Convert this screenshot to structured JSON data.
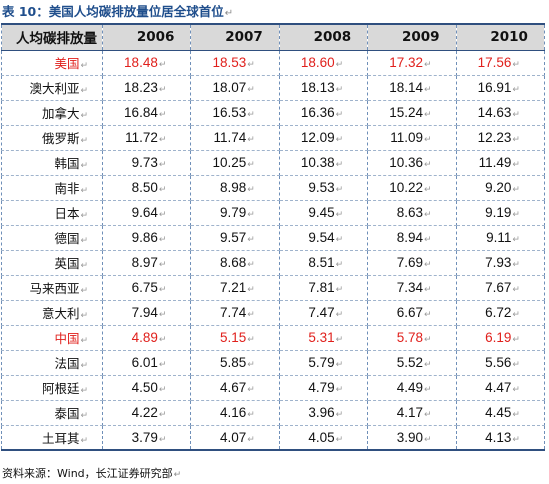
{
  "caption": "表 10：美国人均碳排放量位居全球首位",
  "para_mark": "↵",
  "table": {
    "header": [
      "人均碳排放量",
      "2006",
      "2007",
      "2008",
      "2009",
      "2010"
    ],
    "highlight_color": "#e0201c",
    "rows": [
      {
        "country": "美国",
        "highlight": true,
        "values": [
          "18.48",
          "18.53",
          "18.60",
          "17.32",
          "17.56"
        ]
      },
      {
        "country": "澳大利亚",
        "highlight": false,
        "values": [
          "18.23",
          "18.07",
          "18.13",
          "18.14",
          "16.91"
        ]
      },
      {
        "country": "加拿大",
        "highlight": false,
        "values": [
          "16.84",
          "16.53",
          "16.36",
          "15.24",
          "14.63"
        ]
      },
      {
        "country": "俄罗斯",
        "highlight": false,
        "values": [
          "11.72",
          "11.74",
          "12.09",
          "11.09",
          "12.23"
        ]
      },
      {
        "country": "韩国",
        "highlight": false,
        "values": [
          "9.73",
          "10.25",
          "10.38",
          "10.36",
          "11.49"
        ]
      },
      {
        "country": "南非",
        "highlight": false,
        "values": [
          "8.50",
          "8.98",
          "9.53",
          "10.22",
          "9.20"
        ]
      },
      {
        "country": "日本",
        "highlight": false,
        "values": [
          "9.64",
          "9.79",
          "9.45",
          "8.63",
          "9.19"
        ]
      },
      {
        "country": "德国",
        "highlight": false,
        "values": [
          "9.86",
          "9.57",
          "9.54",
          "8.94",
          "9.11"
        ]
      },
      {
        "country": "英国",
        "highlight": false,
        "values": [
          "8.97",
          "8.68",
          "8.51",
          "7.69",
          "7.93"
        ]
      },
      {
        "country": "马来西亚",
        "highlight": false,
        "values": [
          "6.75",
          "7.21",
          "7.81",
          "7.34",
          "7.67"
        ]
      },
      {
        "country": "意大利",
        "highlight": false,
        "values": [
          "7.94",
          "7.74",
          "7.47",
          "6.67",
          "6.72"
        ]
      },
      {
        "country": "中国",
        "highlight": true,
        "values": [
          "4.89",
          "5.15",
          "5.31",
          "5.78",
          "6.19"
        ]
      },
      {
        "country": "法国",
        "highlight": false,
        "values": [
          "6.01",
          "5.85",
          "5.79",
          "5.52",
          "5.56"
        ]
      },
      {
        "country": "阿根廷",
        "highlight": false,
        "values": [
          "4.50",
          "4.67",
          "4.79",
          "4.49",
          "4.47"
        ]
      },
      {
        "country": "泰国",
        "highlight": false,
        "values": [
          "4.22",
          "4.16",
          "3.96",
          "4.17",
          "4.45"
        ]
      },
      {
        "country": "土耳其",
        "highlight": false,
        "values": [
          "3.79",
          "4.07",
          "4.05",
          "3.90",
          "4.13"
        ]
      }
    ]
  },
  "source": "资料来源：Wind，长江证券研究部"
}
